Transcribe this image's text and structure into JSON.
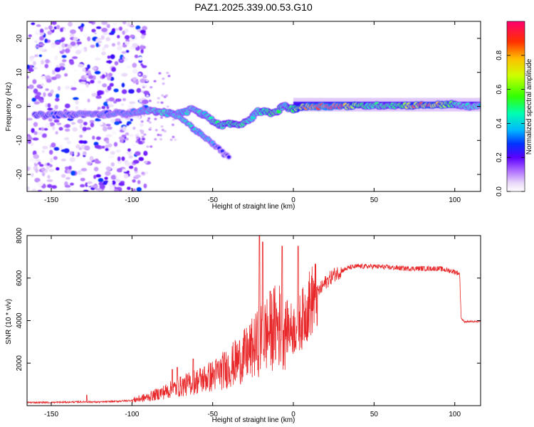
{
  "figure_title": "PAZ1.2025.339.00.53.G10",
  "colors": {
    "axis": "#000000",
    "snr_line": "#e8282a",
    "colormap": [
      "#ffffff",
      "#d9b7f5",
      "#9b30ff",
      "#5a00ff",
      "#0033ff",
      "#00b7ff",
      "#00ff88",
      "#33ff00",
      "#ccff00",
      "#ffbf00",
      "#ff3000",
      "#ff0070"
    ]
  },
  "chart_data": [
    {
      "type": "heatmap",
      "title": "PAZ1.2025.339.00.53.G10",
      "xlabel": "Height of straight line (km)",
      "ylabel": "Frequency (Hz)",
      "xlim": [
        -165,
        116
      ],
      "ylim": [
        -25,
        25
      ],
      "x_ticks": [
        -150,
        -100,
        -50,
        0,
        50,
        100
      ],
      "x_tick_labels": [
        "-150",
        "-100",
        "-50",
        "0",
        "50",
        "100"
      ],
      "y_ticks": [
        -20,
        -10,
        0,
        10,
        20
      ],
      "y_tick_labels": [
        "-20",
        "-10",
        "0",
        "10",
        "20"
      ],
      "colorbar": {
        "label": "Normalized spectral amplitude",
        "range": [
          0,
          1
        ],
        "ticks": [
          0,
          0.2,
          0.4,
          0.6,
          0.8
        ],
        "tick_labels": [
          "0.0",
          "0.2",
          "0.4",
          "0.6",
          "0.8"
        ]
      },
      "ridge": {
        "description": "main signal frequency track (Hz) vs height (km)",
        "points": [
          [
            -160,
            -2.5,
            0.3
          ],
          [
            -150,
            -2.5,
            0.3
          ],
          [
            -140,
            -2.5,
            0.3
          ],
          [
            -130,
            -2.2,
            0.3
          ],
          [
            -120,
            -2.3,
            0.32
          ],
          [
            -110,
            -2.1,
            0.32
          ],
          [
            -100,
            -1.8,
            0.35
          ],
          [
            -95,
            -1.5,
            0.38
          ],
          [
            -90,
            -1.2,
            0.4
          ],
          [
            -85,
            -1.5,
            0.42
          ],
          [
            -80,
            -1.8,
            0.45
          ],
          [
            -75,
            -2.2,
            0.45
          ],
          [
            -70,
            -2.0,
            0.42
          ],
          [
            -66,
            -1.5,
            0.45
          ],
          [
            -62,
            -0.5,
            0.4
          ],
          [
            -58,
            -2.0,
            0.45
          ],
          [
            -55,
            -2.5,
            0.45
          ],
          [
            -52,
            -3.5,
            0.45
          ],
          [
            -48,
            -5.0,
            0.5
          ],
          [
            -44,
            -5.5,
            0.5
          ],
          [
            -40,
            -5.0,
            0.55
          ],
          [
            -36,
            -5.5,
            0.55
          ],
          [
            -32,
            -5.0,
            0.5
          ],
          [
            -28,
            -4.5,
            0.5
          ],
          [
            -25,
            -3.0,
            0.45
          ],
          [
            -22,
            -1.5,
            0.45
          ],
          [
            -18,
            -1.5,
            0.55
          ],
          [
            -14,
            -2.0,
            0.55
          ],
          [
            -10,
            -1.5,
            0.5
          ],
          [
            -7,
            -0.2,
            0.5
          ],
          [
            -5,
            0.5,
            0.45
          ],
          [
            -3,
            -0.5,
            0.5
          ],
          [
            0,
            -0.8,
            0.55
          ],
          [
            2,
            -0.5,
            0.7
          ],
          [
            5,
            -0.3,
            0.75
          ],
          [
            10,
            0.0,
            0.9
          ],
          [
            20,
            0.0,
            0.95
          ],
          [
            30,
            0.1,
            0.9
          ],
          [
            38,
            0.2,
            0.7
          ],
          [
            45,
            0.2,
            0.55
          ],
          [
            55,
            0.3,
            0.5
          ],
          [
            65,
            0.3,
            0.55
          ],
          [
            75,
            0.3,
            0.8
          ],
          [
            85,
            0.4,
            0.85
          ],
          [
            92,
            0.5,
            0.75
          ],
          [
            97,
            0.7,
            0.65
          ],
          [
            100,
            0.5,
            0.55
          ],
          [
            103,
            0.2,
            0.45
          ],
          [
            108,
            0.0,
            0.45
          ],
          [
            116,
            0.0,
            0.4
          ]
        ]
      },
      "branch": {
        "description": "secondary descending track",
        "points": [
          [
            -75,
            -2.0,
            0.4
          ],
          [
            -68,
            -4.0,
            0.4
          ],
          [
            -62,
            -6.5,
            0.45
          ],
          [
            -58,
            -8.0,
            0.4
          ],
          [
            -54,
            -9.5,
            0.4
          ],
          [
            -50,
            -11.0,
            0.35
          ],
          [
            -47,
            -12.0,
            0.3
          ],
          [
            -43,
            -14.0,
            0.25
          ],
          [
            -40,
            -15.0,
            0.22
          ]
        ]
      },
      "noise_region": {
        "x_range": [
          -165,
          -95
        ],
        "y_range": [
          -25,
          25
        ],
        "max_amplitude": 0.3
      },
      "baseline_band": {
        "x_range": [
          0,
          116
        ],
        "frequency": 0.3,
        "amplitude": 0.22
      }
    },
    {
      "type": "line",
      "title": "",
      "xlabel": "Height of straight line (km)",
      "ylabel": "SNR (10 * v/v)",
      "xlim": [
        -165,
        116
      ],
      "ylim": [
        0,
        8000
      ],
      "x_ticks": [
        -150,
        -100,
        -50,
        0,
        50,
        100
      ],
      "x_tick_labels": [
        "-150",
        "-100",
        "-50",
        "0",
        "50",
        "100"
      ],
      "y_ticks": [
        2000,
        4000,
        6000,
        8000
      ],
      "y_tick_labels": [
        "2000",
        "4000",
        "6000",
        "8000"
      ],
      "series": [
        {
          "name": "SNR",
          "mean_points": [
            [
              -165,
              150
            ],
            [
              -150,
              150
            ],
            [
              -130,
              180
            ],
            [
              -120,
              170
            ],
            [
              -110,
              200
            ],
            [
              -100,
              250
            ],
            [
              -90,
              400
            ],
            [
              -80,
              650
            ],
            [
              -70,
              900
            ],
            [
              -60,
              1150
            ],
            [
              -50,
              1400
            ],
            [
              -40,
              1800
            ],
            [
              -30,
              2350
            ],
            [
              -25,
              2700
            ],
            [
              -20,
              3100
            ],
            [
              -15,
              3500
            ],
            [
              -10,
              3800
            ],
            [
              -5,
              3700
            ],
            [
              0,
              3600
            ],
            [
              5,
              4000
            ],
            [
              10,
              4800
            ],
            [
              15,
              5300
            ],
            [
              20,
              5800
            ],
            [
              25,
              6150
            ],
            [
              30,
              6350
            ],
            [
              35,
              6500
            ],
            [
              40,
              6550
            ],
            [
              50,
              6550
            ],
            [
              60,
              6500
            ],
            [
              70,
              6450
            ],
            [
              80,
              6450
            ],
            [
              90,
              6450
            ],
            [
              100,
              6300
            ],
            [
              103,
              6200
            ],
            [
              104,
              4100
            ],
            [
              106,
              3950
            ],
            [
              116,
              3950
            ]
          ],
          "spikes": [
            [
              -21,
              8000
            ],
            [
              -19,
              7700
            ],
            [
              -7,
              7500
            ],
            [
              3,
              7500
            ],
            [
              -62,
              2200
            ],
            [
              -72,
              1800
            ],
            [
              -75,
              1700
            ],
            [
              -128,
              500
            ]
          ]
        }
      ]
    }
  ]
}
